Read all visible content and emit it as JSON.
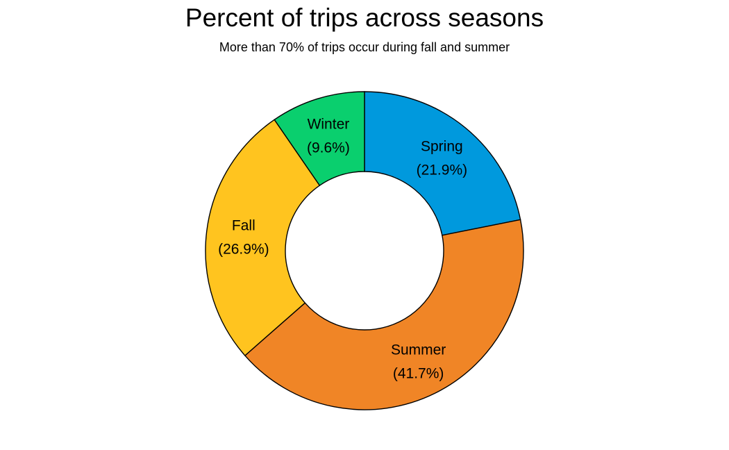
{
  "chart_data": {
    "type": "pie",
    "title": "Percent of trips across seasons",
    "subtitle": "More than 70% of trips occur during fall and summer",
    "donut": true,
    "start": "top",
    "direction": "clockwise",
    "slices": [
      {
        "label": "Spring",
        "value": 21.9,
        "value_label": "(21.9%)",
        "color": "#0099DD"
      },
      {
        "label": "Summer",
        "value": 41.7,
        "value_label": "(41.7%)",
        "color": "#F08526"
      },
      {
        "label": "Fall",
        "value": 26.9,
        "value_label": "(26.9%)",
        "color": "#FFC41F"
      },
      {
        "label": "Winter",
        "value": 9.6,
        "value_label": "(9.6%)",
        "color": "#0ACF6E"
      }
    ]
  }
}
